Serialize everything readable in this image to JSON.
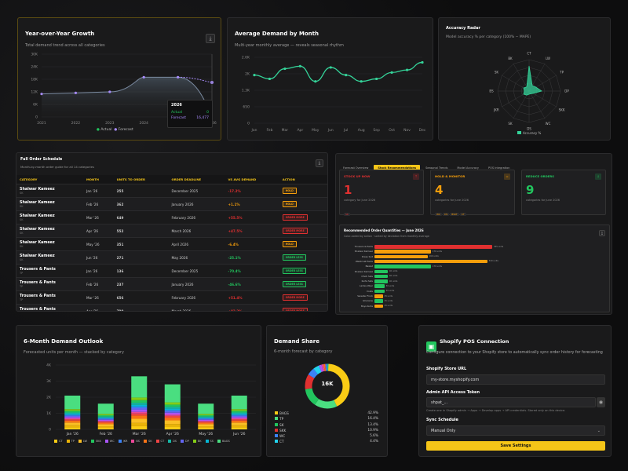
{
  "yoy": {
    "title": "Year-over-Year Growth",
    "subtitle": "Total demand trend across all categories",
    "download_icon": "download-icon",
    "tooltip": {
      "year": "2026",
      "actual_label": "Actual",
      "actual_value": "0",
      "forecast_label": "Forecast",
      "forecast_value": "16,477"
    },
    "legend": {
      "actual": "Actual",
      "forecast": "Forecast"
    },
    "chart_data": {
      "type": "area",
      "x": [
        "2021",
        "2022",
        "2023",
        "2024",
        "2025",
        "2026"
      ],
      "yticks": [
        "0",
        "6K",
        "12K",
        "18K",
        "24K",
        "30K"
      ],
      "ylim": [
        0,
        30000
      ],
      "series": [
        {
          "name": "Actual",
          "values": [
            11000,
            11500,
            12000,
            19000,
            19000,
            0
          ]
        },
        {
          "name": "Forecast",
          "values": [
            11000,
            11500,
            12000,
            19000,
            19000,
            16477
          ]
        }
      ]
    }
  },
  "avg": {
    "title": "Average Demand by Month",
    "subtitle": "Multi-year monthly average — reveals seasonal rhythm",
    "chart_data": {
      "type": "line",
      "x": [
        "Jan",
        "Feb",
        "Mar",
        "Apr",
        "May",
        "Jun",
        "Jul",
        "Aug",
        "Sep",
        "Oct",
        "Nov",
        "Dec"
      ],
      "yticks": [
        "0",
        "650",
        "1.3K",
        "2K",
        "2.6K"
      ],
      "ylim": [
        0,
        2600
      ],
      "values": [
        1900,
        1750,
        2150,
        2250,
        1650,
        2200,
        1900,
        1650,
        1750,
        2000,
        2100,
        2400
      ]
    }
  },
  "radar": {
    "title": "Accuracy Radar",
    "subtitle": "Model accuracy % per category (100% − MAPE)",
    "legend": "Accuracy %",
    "chart_data": {
      "type": "radar",
      "categories": [
        "CT",
        "LW",
        "TP",
        "DP",
        "SKK",
        "WC",
        "DS",
        "SK",
        "JKR",
        "BS",
        "SK",
        "BK"
      ],
      "values": [
        80,
        20,
        25,
        40,
        15,
        10,
        10,
        15,
        20,
        15,
        20,
        15
      ]
    }
  },
  "schedule": {
    "title": "Full Order Schedule",
    "subtitle": "Month-by-month order guide for all 14 categories",
    "columns": [
      "CATEGORY",
      "MONTH",
      "UNITS TO ORDER",
      "ORDER DEADLINE",
      "VS AVG DEMAND",
      "ACTION"
    ],
    "rows": [
      {
        "cat": "Shalwar Kameez",
        "code": "SK",
        "month": "Jan '26",
        "units": "255",
        "deadline": "December 2025",
        "vs": "-17.2%",
        "vsc": "#e03030",
        "action": "HOLD",
        "ac": "#f59e0b"
      },
      {
        "cat": "Shalwar Kameez",
        "code": "SK",
        "month": "Feb '26",
        "units": "362",
        "deadline": "January 2026",
        "vs": "+1.1%",
        "vsc": "#f59e0b",
        "action": "HOLD",
        "ac": "#f59e0b"
      },
      {
        "cat": "Shalwar Kameez",
        "code": "SK",
        "month": "Mar '26",
        "units": "649",
        "deadline": "February 2026",
        "vs": "+55.5%",
        "vsc": "#e03030",
        "action": "ORDER MORE",
        "ac": "#e03030"
      },
      {
        "cat": "Shalwar Kameez",
        "code": "SK",
        "month": "Apr '26",
        "units": "552",
        "deadline": "March 2026",
        "vs": "+47.5%",
        "vsc": "#e03030",
        "action": "ORDER MORE",
        "ac": "#e03030"
      },
      {
        "cat": "Shalwar Kameez",
        "code": "SK",
        "month": "May '26",
        "units": "351",
        "deadline": "April 2026",
        "vs": "-6.4%",
        "vsc": "#f59e0b",
        "action": "HOLD",
        "ac": "#f59e0b"
      },
      {
        "cat": "Shalwar Kameez",
        "code": "SK",
        "month": "Jun '26",
        "units": "271",
        "deadline": "May 2026",
        "vs": "-25.1%",
        "vsc": "#22c55e",
        "action": "ORDER LESS",
        "ac": "#22c55e"
      },
      {
        "cat": "Trousers & Pants",
        "code": "TP",
        "month": "Jan '26",
        "units": "136",
        "deadline": "December 2025",
        "vs": "-70.4%",
        "vsc": "#22c55e",
        "action": "ORDER LESS",
        "ac": "#22c55e"
      },
      {
        "cat": "Trousers & Pants",
        "code": "TP",
        "month": "Feb '26",
        "units": "237",
        "deadline": "January 2026",
        "vs": "-46.6%",
        "vsc": "#22c55e",
        "action": "ORDER LESS",
        "ac": "#22c55e"
      },
      {
        "cat": "Trousers & Pants",
        "code": "TP",
        "month": "Mar '26",
        "units": "656",
        "deadline": "February 2026",
        "vs": "+51.4%",
        "vsc": "#e03030",
        "action": "ORDER MORE",
        "ac": "#e03030"
      },
      {
        "cat": "Trousers & Pants",
        "code": "TP",
        "month": "Apr '26",
        "units": "799",
        "deadline": "March 2026",
        "vs": "+82.2%",
        "vsc": "#e03030",
        "action": "ORDER MORE",
        "ac": "#e03030"
      }
    ]
  },
  "reco": {
    "tabs": [
      "Forecast Overview",
      "Stock Recommendations",
      "Seasonal Trends",
      "Model Accuracy",
      "POS Integration"
    ],
    "active_tab": 1,
    "stats": [
      {
        "label": "STOCK UP NOW",
        "value": "1",
        "caption": "category for June 2026",
        "tags": [
          "SK"
        ],
        "color": "#e03030",
        "badge": "↑"
      },
      {
        "label": "HOLD & MONITOR",
        "value": "4",
        "caption": "categories for June 2026",
        "tags": [
          "WC",
          "DS",
          "BSKT",
          "CT"
        ],
        "color": "#f59e0b",
        "badge": "="
      },
      {
        "label": "REDUCE ORDERS",
        "value": "9",
        "caption": "categories for June 2026",
        "tags": [],
        "color": "#22c55e",
        "badge": "↓"
      }
    ],
    "qty_title": "Recommended Order Quantities — June 2026",
    "qty_subtitle": "Color-coded by action · sorted by deviation from monthly average",
    "chart_data": {
      "type": "bar",
      "categories": [
        "Trousers & Pants",
        "Shalwar Kameez",
        "Dress Suit",
        "Waistcoat Pants",
        "Basket",
        "Shalwar Kameez",
        "Dhoti Sets",
        "Kurta Sets",
        "Ladies Wear",
        "Coats",
        "Sweater Frock",
        "Ghararas",
        "Boys Kurta"
      ],
      "values": [
        355,
        170,
        160,
        340,
        170,
        40,
        40,
        40,
        30,
        30,
        25,
        25,
        25
      ],
      "labels": [
        "355 units",
        "170 units",
        "160 units",
        "340 units",
        "170 units",
        "40 units",
        "40 units",
        "40 units",
        "30 units",
        "30 units",
        "25 units",
        "25 units",
        "25 units"
      ],
      "colors": [
        "#e03030",
        "#f59e0b",
        "#f59e0b",
        "#f59e0b",
        "#22c55e",
        "#22c55e",
        "#22c55e",
        "#22c55e",
        "#22c55e",
        "#22c55e",
        "#f59e0b",
        "#22c55e",
        "#f59e0b"
      ]
    }
  },
  "outlook": {
    "title": "6-Month Demand Outlook",
    "subtitle": "Forecasted units per month — stacked by category",
    "chart_data": {
      "type": "bar",
      "categories": [
        "Jan '26",
        "Feb '26",
        "Mar '26",
        "Apr '26",
        "May '26",
        "Jun '26"
      ],
      "totals": [
        2100,
        1600,
        3300,
        2800,
        1600,
        2100
      ],
      "yticks": [
        "0",
        "1K",
        "2K",
        "3K",
        "4K"
      ],
      "ylim": [
        0,
        4000
      ],
      "legend": [
        "CT",
        "TP",
        "LW",
        "SKK",
        "WC",
        "JKR",
        "BS",
        "SK",
        "CT",
        "DS",
        "DP",
        "BK",
        "SS",
        "BAGS"
      ],
      "legend_colors": [
        "#facc15",
        "#eab308",
        "#fbbf24",
        "#22c55e",
        "#a855f7",
        "#3b82f6",
        "#ec4899",
        "#f97316",
        "#ef4444",
        "#14b8a6",
        "#6366f1",
        "#84cc16",
        "#06b6d4",
        "#4ade80"
      ]
    }
  },
  "share": {
    "title": "Demand Share",
    "subtitle": "6-month forecast by category",
    "center": "16K",
    "chart_data": {
      "type": "pie",
      "categories": [
        "BAGS",
        "TP",
        "SK",
        "SKK",
        "WC",
        "CT"
      ],
      "values": [
        42.9,
        16.4,
        13.4,
        10.9,
        5.6,
        4.4
      ],
      "labels": [
        "42.9%",
        "16.4%",
        "13.4%",
        "10.9%",
        "5.6%",
        "4.4%"
      ],
      "colors": [
        "#facc15",
        "#4ade80",
        "#22c55e",
        "#e03030",
        "#3b82f6",
        "#22d3ee"
      ]
    }
  },
  "shopify": {
    "title": "Shopify POS Connection",
    "desc": "Configure connection to your Shopify store to automatically sync order history for forecasting",
    "store_label": "Shopify Store URL",
    "store_value": "my-store.myshopify.com",
    "token_label": "Admin API Access Token",
    "token_value": "shpat_...",
    "hint": "Create one in Shopify admin → Apps → Develop apps → API credentials. Stored only on this device.",
    "sync_label": "Sync Schedule",
    "sync_value": "Manual Only",
    "save": "Save Settings"
  }
}
